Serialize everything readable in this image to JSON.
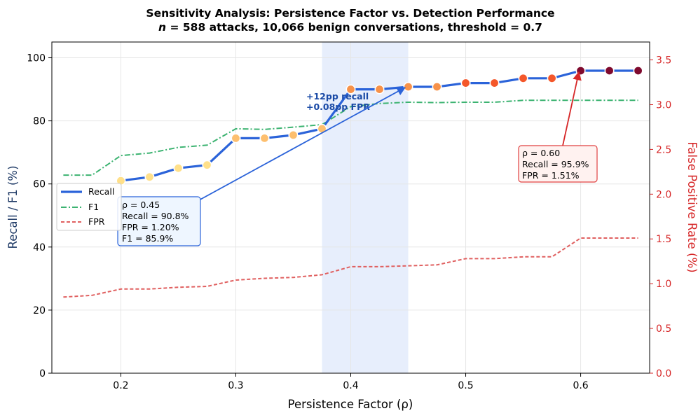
{
  "chart_data": {
    "type": "line",
    "title": "Sensitivity Analysis: Persistence Factor vs. Detection Performance",
    "subtitle": "n = 588 attacks, 10,066 benign conversations, threshold = 0.7",
    "subtitle_italic_lead": "n",
    "subtitle_rest": " = 588 attacks, 10,066 benign conversations, threshold = 0.7",
    "xlabel": "Persistence Factor (ρ)",
    "ylabel_left": "Recall / F1 (%)",
    "ylabel_right": "False Positive Rate (%)",
    "xlim": [
      0.14,
      0.66
    ],
    "ylim_left": [
      0,
      105
    ],
    "ylim_right": [
      0,
      3.7
    ],
    "xticks": [
      "0.2",
      "0.3",
      "0.4",
      "0.5",
      "0.6"
    ],
    "xtick_values": [
      0.2,
      0.3,
      0.4,
      0.5,
      0.6
    ],
    "yticks_left": [
      "0",
      "20",
      "40",
      "60",
      "80",
      "100"
    ],
    "ytick_values_left": [
      0,
      20,
      40,
      60,
      80,
      100
    ],
    "yticks_right": [
      "0.0",
      "0.5",
      "1.0",
      "1.5",
      "2.0",
      "2.5",
      "3.0",
      "3.5"
    ],
    "ytick_values_right": [
      0,
      0.5,
      1.0,
      1.5,
      2.0,
      2.5,
      3.0,
      3.5
    ],
    "grid": true,
    "legend_position": "middle-left",
    "highlight_band": [
      0.375,
      0.45
    ],
    "x": [
      0.15,
      0.175,
      0.2,
      0.225,
      0.25,
      0.275,
      0.3,
      0.325,
      0.35,
      0.375,
      0.4,
      0.425,
      0.45,
      0.475,
      0.5,
      0.525,
      0.55,
      0.575,
      0.6,
      0.625,
      0.65
    ],
    "series": [
      {
        "name": "Recall",
        "axis": "left",
        "color": "#2b63d9",
        "values": [
          null,
          null,
          61.0,
          62.2,
          65.0,
          66.0,
          74.5,
          74.5,
          75.5,
          77.5,
          90.0,
          90.0,
          90.8,
          90.8,
          92.0,
          92.0,
          93.5,
          93.5,
          95.9,
          95.9,
          95.9
        ],
        "marker_colors": [
          "",
          "",
          "#ffe08a",
          "#ffe08a",
          "#ffe08a",
          "#ffe08a",
          "#fdbf6f",
          "#fdbf6f",
          "#fdbf6f",
          "#fdbf6f",
          "#f7924a",
          "#f7924a",
          "#f7924a",
          "#f7924a",
          "#f4572a",
          "#f4572a",
          "#f4572a",
          "#f4572a",
          "#7f0a2e",
          "#7f0a2e",
          "#7f0a2e"
        ]
      },
      {
        "name": "F1",
        "axis": "left",
        "color": "#3cb371",
        "values": [
          62.8,
          62.8,
          69.0,
          69.8,
          71.6,
          72.3,
          77.5,
          77.3,
          78.0,
          78.8,
          84.5,
          85.5,
          85.9,
          85.8,
          85.9,
          85.9,
          86.5,
          86.5,
          86.5,
          86.5,
          86.5
        ]
      },
      {
        "name": "FPR",
        "axis": "right",
        "color": "#e06060",
        "values": [
          0.85,
          0.87,
          0.94,
          0.94,
          0.96,
          0.97,
          1.04,
          1.06,
          1.07,
          1.1,
          1.19,
          1.19,
          1.2,
          1.21,
          1.28,
          1.28,
          1.3,
          1.3,
          1.51,
          1.51,
          1.51
        ]
      }
    ],
    "annotations": [
      {
        "lines": [
          "ρ = 0.45",
          "Recall = 90.8%",
          "FPR = 1.20%",
          "F1 = 85.9%"
        ],
        "border_color": "#2b63d9",
        "bg_color": "#eef6ff",
        "arrow_to": [
          0.45,
          90.8
        ]
      },
      {
        "lines": [
          "ρ = 0.60",
          "Recall = 95.9%",
          "FPR = 1.51%"
        ],
        "border_color": "#e04040",
        "bg_color": "#fff2f0",
        "arrow_to": [
          0.6,
          95.9
        ]
      }
    ],
    "delta_label": [
      "+12pp recall",
      "+0.08pp FPR"
    ]
  }
}
